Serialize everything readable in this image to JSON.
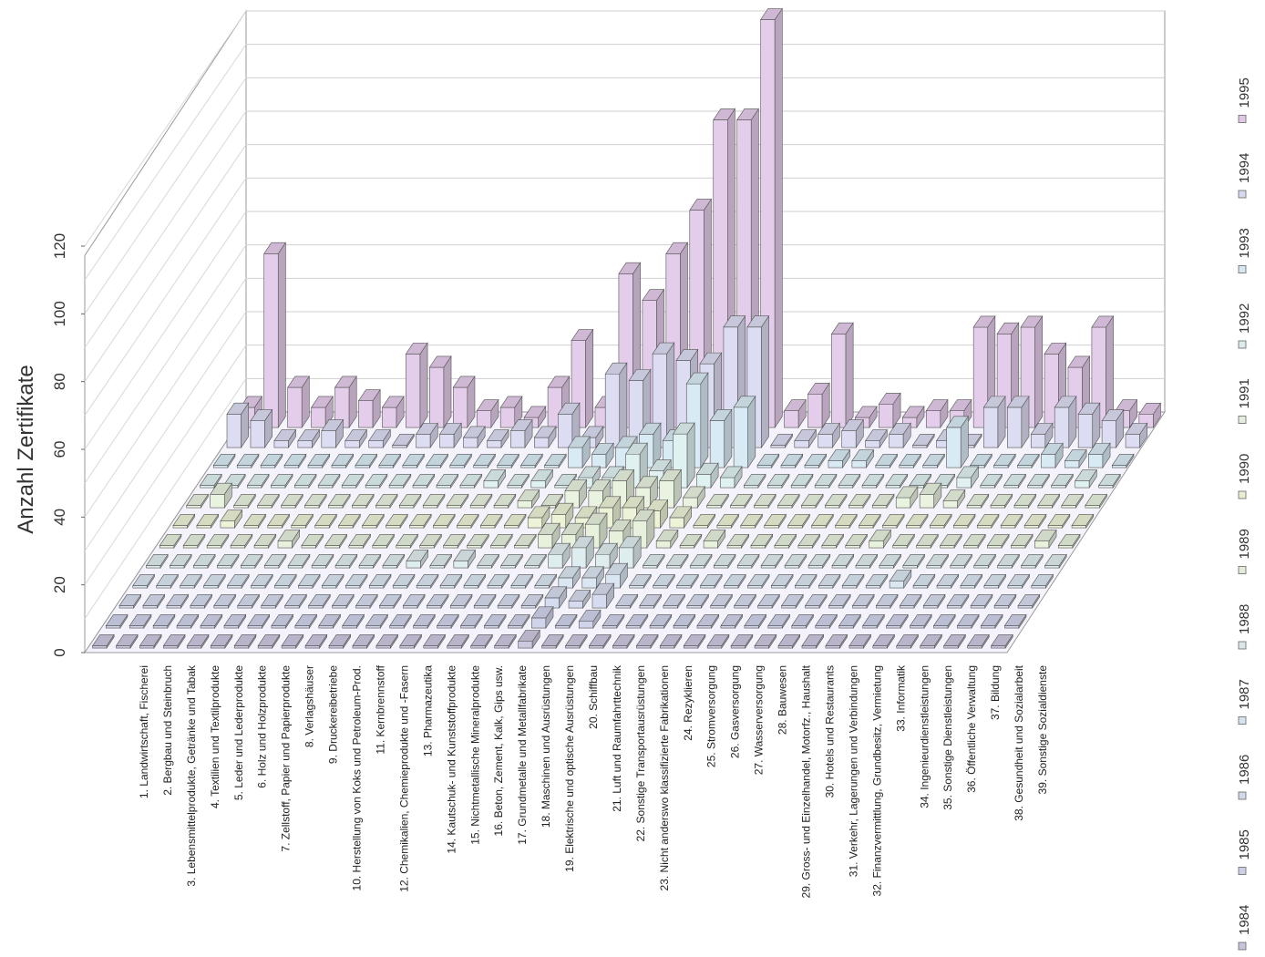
{
  "chart_data": {
    "type": "bar",
    "subtype": "3d-column",
    "ylabel": "Anzahl Zertifikate",
    "ylim": [
      0,
      120
    ],
    "yticks": [
      "0",
      "20",
      "40",
      "60",
      "80",
      "100",
      "120"
    ],
    "grid": true,
    "legend": "right",
    "categories": [
      "1.  Landwirtschaft, Fischerei",
      "2.  Bergbau und Steinbruch",
      "3.  Lebensmittelprodukte, Getränke und Tabak",
      "4.  Textilien und Textilprodukte",
      "5.  Leder und Lederprodukte",
      "6.  Holz und Holzprodukte",
      "7.  Zellstoff, Papier und Papierprodukte",
      "8.  Verlagshäuser",
      "9.  Druckereibetriebe",
      "10.  Herstellung von Koks und Petroleum-Prod.",
      "11.  Kernbrennstoff",
      "12.  Chemikalien, Chemieprodukte und -Fasern",
      "13.  Pharmazeutika",
      "14.  Kautschuk- und Kunststoffprodukte",
      "15.  Nichtmetallische Mineralprodukte",
      "16.  Beton, Zement, Kalk, Gips usw.",
      "17.  Grundmetalle und Metallfabrikate",
      "18.  Maschinen und Ausrüstungen",
      "19.  Elektrische und optische Ausrüstungen",
      "20.  Schiffbau",
      "21.  Luft und Raumfahrttechnik",
      "22.  Sonstige Transportausrüstungen",
      "23.  Nicht anderswo klassifizierte Fabrikationen",
      "24.  Rezyklieren",
      "25.  Stromversorgung",
      "26.  Gasversorgung",
      "27.  Wasserversorgung",
      "28.  Bauwesen",
      "29.  Gross- und Einzelhandel, Motorfz., Haushalt",
      "30.  Hotels und Restaurants",
      "31.  Verkehr, Lagerungen und Verbindungen",
      "32.  Finanzvermittlung, Grundbesitz, Vermietung",
      "33.  Informatik",
      "34.  Ingenieurdienstleistungen",
      "35.  Sonstige Dienstleistungen",
      "36.  Öffentliche Verwaltung",
      "37.  Bildung",
      "38.  Gesundheit und Sozialarbeit",
      "39.  Sonstige Sozialdienste"
    ],
    "series": [
      {
        "name": "1984",
        "color": "#c9c4dc",
        "values": [
          0,
          0,
          0,
          0,
          0,
          0,
          0,
          0,
          0,
          0,
          0,
          0,
          0,
          0,
          0,
          0,
          0,
          0,
          2,
          0,
          0,
          0,
          0,
          0,
          0,
          0,
          0,
          0,
          0,
          0,
          0,
          0,
          0,
          0,
          0,
          0,
          0,
          0,
          0
        ]
      },
      {
        "name": "1985",
        "color": "#ccd0e6",
        "values": [
          0,
          0,
          0,
          0,
          0,
          0,
          0,
          0,
          0,
          0,
          0,
          0,
          0,
          0,
          0,
          0,
          0,
          0,
          3,
          0,
          2,
          0,
          0,
          0,
          0,
          0,
          0,
          0,
          0,
          0,
          0,
          0,
          0,
          0,
          0,
          0,
          0,
          0,
          0
        ]
      },
      {
        "name": "1986",
        "color": "#d2d8ea",
        "values": [
          0,
          0,
          0,
          0,
          0,
          0,
          0,
          0,
          0,
          0,
          0,
          0,
          0,
          0,
          0,
          0,
          0,
          0,
          3,
          2,
          4,
          0,
          0,
          0,
          0,
          0,
          0,
          0,
          0,
          0,
          0,
          0,
          0,
          0,
          0,
          0,
          0,
          0,
          0
        ]
      },
      {
        "name": "1987",
        "color": "#d6e2ee",
        "values": [
          0,
          0,
          0,
          0,
          0,
          0,
          0,
          0,
          0,
          0,
          0,
          0,
          0,
          0,
          0,
          0,
          0,
          0,
          3,
          3,
          4,
          0,
          0,
          0,
          0,
          0,
          0,
          0,
          0,
          0,
          0,
          0,
          2,
          0,
          0,
          0,
          0,
          0,
          0
        ]
      },
      {
        "name": "1988",
        "color": "#dae8ea",
        "values": [
          0,
          0,
          0,
          0,
          0,
          0,
          0,
          0,
          0,
          0,
          0,
          2,
          0,
          2,
          0,
          0,
          0,
          4,
          6,
          4,
          6,
          0,
          0,
          0,
          0,
          0,
          0,
          0,
          0,
          0,
          0,
          0,
          0,
          0,
          0,
          0,
          0,
          0,
          0
        ]
      },
      {
        "name": "1989",
        "color": "#e2ecd8",
        "values": [
          0,
          0,
          0,
          0,
          0,
          2,
          0,
          0,
          0,
          0,
          0,
          0,
          0,
          0,
          0,
          0,
          4,
          4,
          7,
          5,
          8,
          2,
          0,
          2,
          0,
          0,
          0,
          0,
          0,
          0,
          2,
          0,
          0,
          0,
          0,
          0,
          0,
          2,
          0
        ]
      },
      {
        "name": "1990",
        "color": "#e8eed2",
        "values": [
          0,
          0,
          2,
          0,
          0,
          0,
          0,
          0,
          0,
          0,
          0,
          0,
          0,
          0,
          0,
          3,
          4,
          3,
          6,
          6,
          5,
          3,
          0,
          0,
          0,
          0,
          0,
          0,
          0,
          0,
          0,
          0,
          0,
          0,
          0,
          0,
          0,
          0,
          0
        ]
      },
      {
        "name": "1991",
        "color": "#e4eedc",
        "values": [
          0,
          4,
          0,
          0,
          0,
          0,
          0,
          0,
          0,
          0,
          0,
          0,
          0,
          0,
          2,
          0,
          5,
          5,
          8,
          6,
          8,
          3,
          0,
          0,
          0,
          0,
          0,
          0,
          0,
          0,
          3,
          4,
          2,
          0,
          0,
          0,
          0,
          0,
          0
        ]
      },
      {
        "name": "1992",
        "color": "#dcecec",
        "values": [
          0,
          0,
          0,
          0,
          0,
          0,
          0,
          0,
          0,
          0,
          0,
          0,
          2,
          0,
          2,
          0,
          3,
          3,
          10,
          5,
          16,
          4,
          3,
          0,
          0,
          0,
          0,
          0,
          0,
          0,
          0,
          0,
          3,
          0,
          0,
          0,
          0,
          2,
          0
        ]
      },
      {
        "name": "1993",
        "color": "#d4e6f0",
        "values": [
          0,
          0,
          0,
          0,
          0,
          0,
          0,
          0,
          0,
          0,
          0,
          0,
          0,
          0,
          0,
          6,
          4,
          6,
          10,
          8,
          25,
          14,
          18,
          0,
          0,
          0,
          2,
          2,
          0,
          0,
          0,
          12,
          0,
          0,
          0,
          4,
          2,
          4,
          0
        ]
      },
      {
        "name": "1994",
        "color": "#d8d8ee",
        "values": [
          10,
          8,
          2,
          2,
          5,
          2,
          2,
          0,
          4,
          4,
          3,
          2,
          5,
          3,
          10,
          3,
          22,
          20,
          28,
          26,
          25,
          36,
          36,
          0,
          2,
          4,
          5,
          2,
          4,
          0,
          2,
          0,
          12,
          12,
          4,
          12,
          10,
          8,
          4
        ]
      },
      {
        "name": "1995",
        "color": "#e0c8e6",
        "values": [
          6,
          52,
          12,
          6,
          12,
          8,
          6,
          22,
          18,
          12,
          5,
          6,
          3,
          12,
          26,
          6,
          46,
          38,
          52,
          65,
          92,
          92,
          122,
          5,
          10,
          28,
          3,
          7,
          3,
          5,
          5,
          30,
          28,
          30,
          22,
          18,
          30,
          5,
          4
        ]
      }
    ]
  }
}
